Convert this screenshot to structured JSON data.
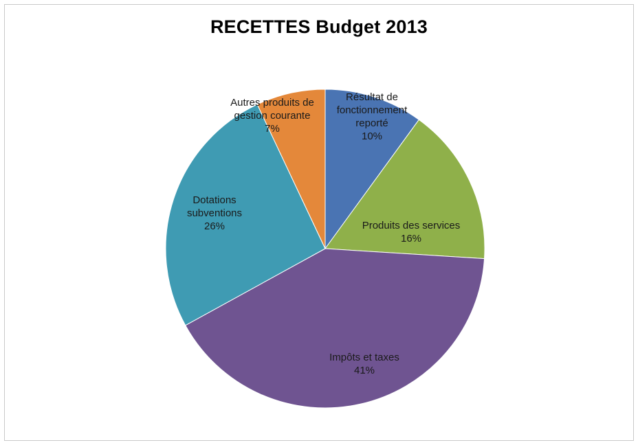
{
  "chart_data": {
    "type": "pie",
    "title": "RECETTES Budget 2013",
    "slices": [
      {
        "name": "Résultat de fonctionnement reporté",
        "label_lines": [
          "Résultat de",
          "fonctionnement",
          "reporté"
        ],
        "value": 10,
        "pct": "10%",
        "color": "#4a74b3"
      },
      {
        "name": "Produits des services",
        "label_lines": [
          "Produits des services"
        ],
        "value": 16,
        "pct": "16%",
        "color": "#8fb04a"
      },
      {
        "name": "Impôts et taxes",
        "label_lines": [
          "Impôts et taxes"
        ],
        "value": 41,
        "pct": "41%",
        "color": "#6f5491"
      },
      {
        "name": "Dotations subventions",
        "label_lines": [
          "Dotations",
          "subventions"
        ],
        "value": 26,
        "pct": "26%",
        "color": "#3f9bb3"
      },
      {
        "name": "Autres produits de gestion courante",
        "label_lines": [
          "Autres produits de",
          "gestion courante"
        ],
        "value": 7,
        "pct": "7%",
        "color": "#e4883a"
      }
    ]
  }
}
